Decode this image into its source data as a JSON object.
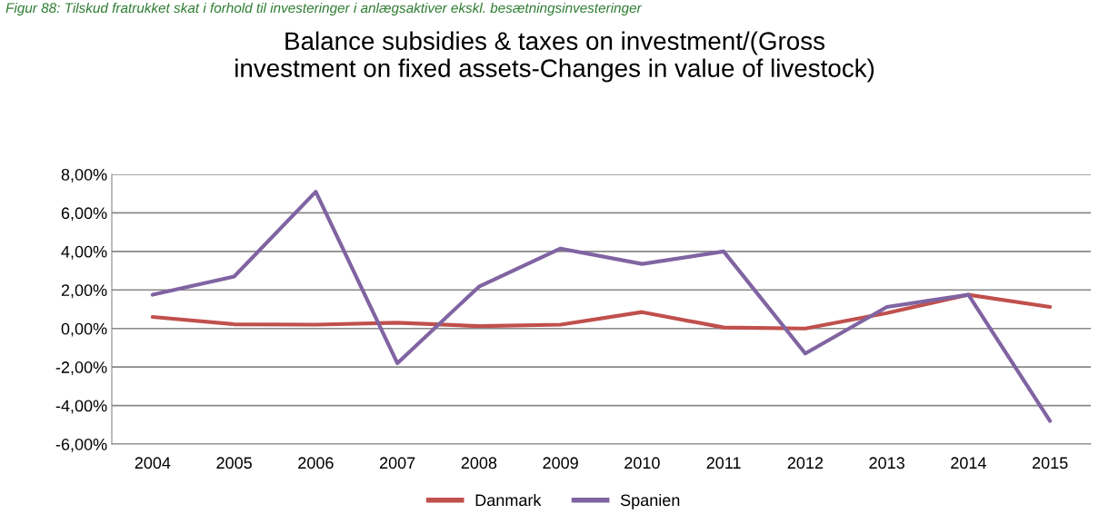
{
  "chart_data": {
    "type": "line",
    "title": "Balance subsidies & taxes on investment/(Gross\ninvestment on fixed assets-Changes in value of livestock)",
    "annotations": [
      "Figur 88: Tilskud fratrukket skat i forhold til investeringer i anlægsaktiver ekskl. besætningsinvesteringer"
    ],
    "categories": [
      "2004",
      "2005",
      "2006",
      "2007",
      "2008",
      "2009",
      "2010",
      "2011",
      "2012",
      "2013",
      "2014",
      "2015"
    ],
    "series": [
      {
        "name": "Danmark",
        "color": "#c0504d",
        "values": [
          0.6,
          0.22,
          0.2,
          0.3,
          0.12,
          0.2,
          0.85,
          0.05,
          0.0,
          0.8,
          1.75,
          1.12
        ]
      },
      {
        "name": "Spanien",
        "color": "#8064a2",
        "values": [
          1.75,
          2.7,
          7.1,
          -1.8,
          2.17,
          4.15,
          3.35,
          4.0,
          -1.3,
          1.12,
          1.75,
          -4.8
        ]
      }
    ],
    "ylim": [
      -6,
      8
    ],
    "yticks": [
      {
        "value": -6,
        "label": "-6,00%"
      },
      {
        "value": -4,
        "label": "-4,00%"
      },
      {
        "value": -2,
        "label": "-2,00%"
      },
      {
        "value": 0,
        "label": "0,00%"
      },
      {
        "value": 2,
        "label": "2,00%"
      },
      {
        "value": 4,
        "label": "4,00%"
      },
      {
        "value": 6,
        "label": "6,00%"
      },
      {
        "value": 8,
        "label": "8,00%"
      }
    ],
    "grid": "y",
    "legend": "bottom",
    "marker": "none",
    "line_style": "solid"
  }
}
